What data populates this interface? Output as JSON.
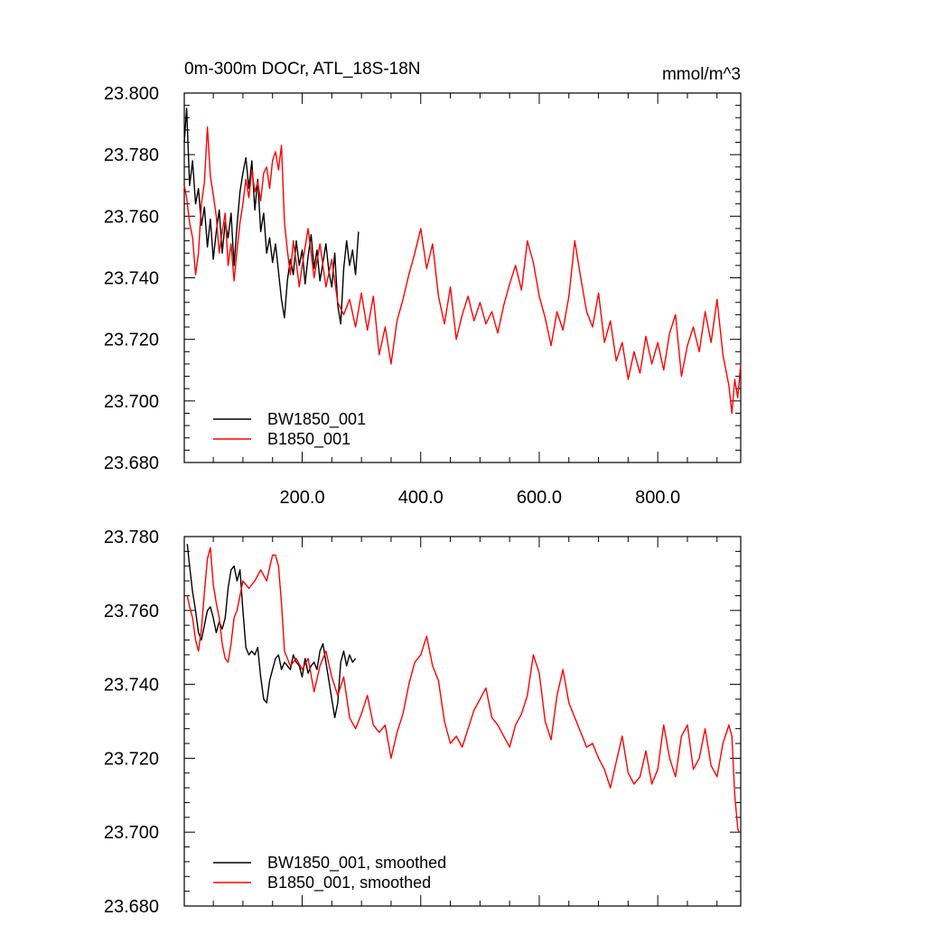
{
  "figure": {
    "title_left": "0m-300m DOCr, ATL_18S-18N",
    "title_right": "mmol/m^3"
  },
  "colors": {
    "BW1850_001": "#000000",
    "B1850_001": "#ff0000"
  },
  "chart_data": [
    {
      "type": "line",
      "title": "0m-300m DOCr, ATL_18S-18N",
      "units": "mmol/m^3",
      "xlim": [
        1,
        940
      ],
      "ylim": [
        23.68,
        23.8
      ],
      "x_ticks": [
        200,
        400,
        600,
        800
      ],
      "x_tick_labels": [
        "200.0",
        "400.0",
        "600.0",
        "800.0"
      ],
      "y_ticks": [
        23.68,
        23.7,
        23.72,
        23.74,
        23.76,
        23.78,
        23.8
      ],
      "y_tick_labels": [
        "23.680",
        "23.700",
        "23.720",
        "23.740",
        "23.760",
        "23.780",
        "23.800"
      ],
      "grid": false,
      "legend": "bottom-left",
      "series": [
        {
          "name": "BW1850_001",
          "color": "#000000",
          "x": [
            1,
            5,
            10,
            15,
            20,
            25,
            30,
            35,
            40,
            45,
            50,
            55,
            60,
            65,
            70,
            75,
            80,
            85,
            90,
            95,
            100,
            105,
            110,
            115,
            120,
            125,
            130,
            135,
            140,
            145,
            150,
            155,
            160,
            165,
            170,
            175,
            180,
            185,
            190,
            195,
            200,
            205,
            210,
            215,
            220,
            225,
            230,
            235,
            240,
            245,
            250,
            255,
            260,
            265,
            270,
            275,
            280,
            285,
            290,
            295
          ],
          "y": [
            23.784,
            23.795,
            23.77,
            23.778,
            23.764,
            23.769,
            23.757,
            23.763,
            23.75,
            23.759,
            23.746,
            23.755,
            23.762,
            23.748,
            23.758,
            23.753,
            23.761,
            23.744,
            23.757,
            23.768,
            23.774,
            23.779,
            23.769,
            23.778,
            23.762,
            23.772,
            23.755,
            23.761,
            23.748,
            23.753,
            23.745,
            23.751,
            23.742,
            23.733,
            23.727,
            23.739,
            23.746,
            23.741,
            23.752,
            23.744,
            23.749,
            23.738,
            23.747,
            23.754,
            23.743,
            23.749,
            23.739,
            23.745,
            23.751,
            23.742,
            23.737,
            23.748,
            23.731,
            23.725,
            23.743,
            23.752,
            23.744,
            23.749,
            23.741,
            23.755
          ]
        },
        {
          "name": "B1850_001",
          "color": "#ff0000",
          "x": [
            1,
            5,
            10,
            15,
            20,
            25,
            30,
            35,
            40,
            45,
            50,
            55,
            60,
            65,
            70,
            75,
            80,
            85,
            90,
            95,
            100,
            105,
            110,
            115,
            120,
            125,
            130,
            135,
            140,
            145,
            150,
            155,
            160,
            165,
            170,
            175,
            180,
            185,
            190,
            195,
            200,
            210,
            220,
            230,
            240,
            250,
            260,
            270,
            280,
            290,
            300,
            310,
            320,
            330,
            340,
            350,
            360,
            370,
            380,
            390,
            400,
            410,
            420,
            430,
            440,
            450,
            460,
            470,
            480,
            490,
            500,
            510,
            520,
            530,
            540,
            550,
            560,
            570,
            580,
            590,
            600,
            610,
            620,
            630,
            640,
            650,
            660,
            670,
            680,
            690,
            700,
            710,
            720,
            730,
            740,
            750,
            760,
            770,
            780,
            790,
            800,
            810,
            820,
            830,
            840,
            850,
            860,
            870,
            880,
            890,
            900,
            910,
            920,
            925,
            930,
            935,
            940
          ],
          "y": [
            23.77,
            23.766,
            23.758,
            23.753,
            23.741,
            23.748,
            23.764,
            23.771,
            23.789,
            23.773,
            23.767,
            23.76,
            23.748,
            23.755,
            23.761,
            23.744,
            23.751,
            23.739,
            23.749,
            23.758,
            23.764,
            23.772,
            23.766,
            23.775,
            23.768,
            23.771,
            23.765,
            23.774,
            23.776,
            23.769,
            23.778,
            23.781,
            23.775,
            23.783,
            23.758,
            23.749,
            23.741,
            23.752,
            23.745,
            23.737,
            23.744,
            23.756,
            23.74,
            23.751,
            23.737,
            23.746,
            23.732,
            23.728,
            23.733,
            23.724,
            23.735,
            23.723,
            23.734,
            23.715,
            23.724,
            23.712,
            23.726,
            23.733,
            23.741,
            23.748,
            23.756,
            23.743,
            23.751,
            23.734,
            23.725,
            23.737,
            23.72,
            23.728,
            23.734,
            23.726,
            23.732,
            23.725,
            23.729,
            23.722,
            23.731,
            23.738,
            23.744,
            23.736,
            23.752,
            23.745,
            23.734,
            23.727,
            23.718,
            23.729,
            23.723,
            23.734,
            23.752,
            23.74,
            23.729,
            23.724,
            23.735,
            23.719,
            23.726,
            23.713,
            23.719,
            23.707,
            23.716,
            23.709,
            23.721,
            23.712,
            23.719,
            23.71,
            23.722,
            23.728,
            23.708,
            23.718,
            23.724,
            23.716,
            23.729,
            23.719,
            23.733,
            23.715,
            23.705,
            23.696,
            23.707,
            23.701,
            23.712
          ]
        }
      ]
    },
    {
      "type": "line",
      "xlim": [
        1,
        940
      ],
      "ylim": [
        23.68,
        23.78
      ],
      "y_ticks": [
        23.68,
        23.7,
        23.72,
        23.74,
        23.76,
        23.78
      ],
      "y_tick_labels": [
        "23.680",
        "23.700",
        "23.720",
        "23.740",
        "23.760",
        "23.780"
      ],
      "grid": false,
      "legend": "bottom-left",
      "series": [
        {
          "name": "BW1850_001, smoothed",
          "color": "#000000",
          "x": [
            6,
            10,
            15,
            20,
            25,
            30,
            35,
            40,
            45,
            50,
            55,
            60,
            65,
            70,
            75,
            80,
            85,
            90,
            95,
            100,
            105,
            110,
            115,
            120,
            125,
            130,
            135,
            140,
            145,
            150,
            155,
            160,
            165,
            170,
            175,
            180,
            185,
            190,
            195,
            200,
            205,
            210,
            215,
            220,
            225,
            230,
            235,
            240,
            245,
            250,
            255,
            260,
            265,
            270,
            275,
            280,
            285,
            290
          ],
          "y": [
            23.778,
            23.772,
            23.765,
            23.76,
            23.754,
            23.752,
            23.756,
            23.76,
            23.761,
            23.758,
            23.754,
            23.757,
            23.755,
            23.758,
            23.766,
            23.771,
            23.772,
            23.768,
            23.771,
            23.76,
            23.75,
            23.748,
            23.749,
            23.748,
            23.75,
            23.742,
            23.736,
            23.735,
            23.741,
            23.744,
            23.747,
            23.748,
            23.744,
            23.746,
            23.745,
            23.744,
            23.748,
            23.746,
            23.745,
            23.742,
            23.747,
            23.743,
            23.745,
            23.746,
            23.744,
            23.749,
            23.751,
            23.746,
            23.741,
            23.736,
            23.731,
            23.735,
            23.746,
            23.749,
            23.745,
            23.748,
            23.746,
            23.747
          ]
        },
        {
          "name": "B1850_001, smoothed",
          "color": "#ff0000",
          "x": [
            6,
            10,
            15,
            20,
            25,
            30,
            35,
            40,
            45,
            50,
            55,
            60,
            65,
            70,
            75,
            80,
            85,
            90,
            95,
            100,
            110,
            120,
            130,
            140,
            150,
            155,
            160,
            165,
            170,
            180,
            190,
            200,
            210,
            220,
            230,
            240,
            250,
            260,
            270,
            280,
            290,
            300,
            310,
            320,
            330,
            340,
            350,
            360,
            370,
            380,
            390,
            400,
            410,
            420,
            430,
            440,
            450,
            460,
            470,
            480,
            490,
            500,
            510,
            520,
            530,
            540,
            550,
            560,
            570,
            580,
            590,
            600,
            610,
            620,
            630,
            640,
            650,
            660,
            670,
            680,
            690,
            700,
            710,
            720,
            730,
            740,
            750,
            760,
            770,
            780,
            790,
            800,
            810,
            820,
            830,
            840,
            850,
            860,
            870,
            880,
            890,
            900,
            910,
            920,
            925,
            930,
            935,
            937
          ],
          "y": [
            23.764,
            23.761,
            23.758,
            23.752,
            23.749,
            23.755,
            23.765,
            23.774,
            23.777,
            23.767,
            23.762,
            23.758,
            23.751,
            23.747,
            23.746,
            23.751,
            23.758,
            23.76,
            23.764,
            23.768,
            23.766,
            23.768,
            23.771,
            23.768,
            23.775,
            23.775,
            23.772,
            23.762,
            23.749,
            23.745,
            23.747,
            23.744,
            23.747,
            23.738,
            23.745,
            23.749,
            23.742,
            23.737,
            23.742,
            23.731,
            23.728,
            23.732,
            23.737,
            23.729,
            23.727,
            23.729,
            23.72,
            23.727,
            23.732,
            23.74,
            23.746,
            23.748,
            23.753,
            23.745,
            23.741,
            23.73,
            23.724,
            23.726,
            23.723,
            23.728,
            23.733,
            23.736,
            23.739,
            23.731,
            23.729,
            23.726,
            23.723,
            23.729,
            23.732,
            23.737,
            23.748,
            23.743,
            23.73,
            23.725,
            23.737,
            23.744,
            23.735,
            23.731,
            23.727,
            23.723,
            23.724,
            23.72,
            23.717,
            23.712,
            23.719,
            23.726,
            23.716,
            23.713,
            23.715,
            23.722,
            23.713,
            23.717,
            23.729,
            23.72,
            23.715,
            23.726,
            23.729,
            23.717,
            23.72,
            23.728,
            23.718,
            23.715,
            23.724,
            23.729,
            23.726,
            23.71,
            23.701,
            23.7
          ]
        }
      ]
    }
  ]
}
